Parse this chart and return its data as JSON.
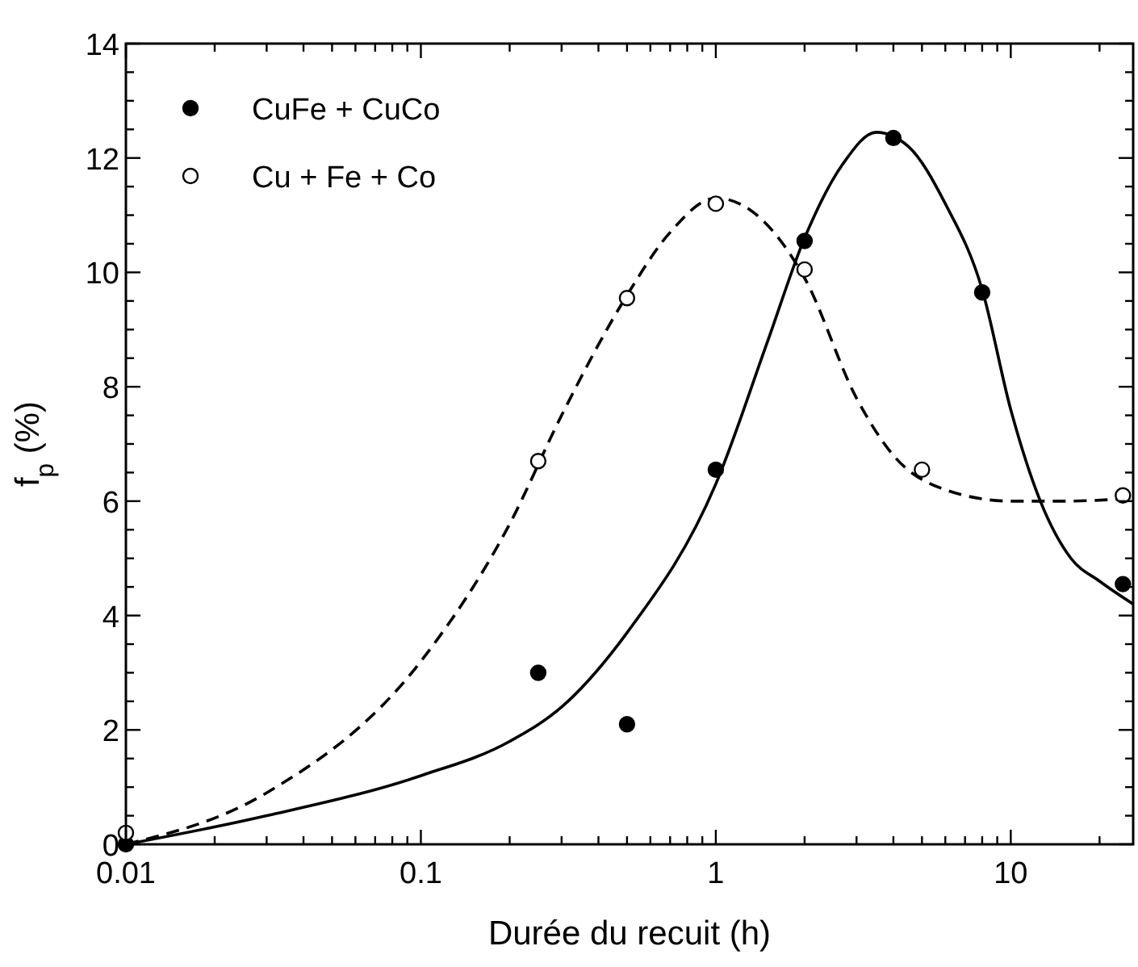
{
  "chart_data": {
    "type": "scatter",
    "xlabel": "Durée du recuit (h)",
    "ylabel": "f$_{p}$ (%)",
    "log": "x",
    "xlim": [
      0.01,
      26
    ],
    "xticks": [
      0.01,
      0.1,
      1,
      10
    ],
    "ylim": [
      0,
      14
    ],
    "yticks": [
      0,
      2,
      4,
      6,
      8,
      10,
      12,
      14
    ],
    "grid": false,
    "legend": "top left",
    "series": [
      {
        "name": "CuFe + CuCo",
        "marker": "circle",
        "color": "#000000",
        "x": [
          0.01,
          0.25,
          0.5,
          1,
          2,
          4,
          8,
          24
        ],
        "values": [
          0,
          3.0,
          2.1,
          6.55,
          10.55,
          12.35,
          9.65,
          4.55
        ]
      },
      {
        "name": "Cu + Fe + Co",
        "marker": "circle",
        "color": "#ffffff",
        "x": [
          0.01,
          0.25,
          0.5,
          1,
          2,
          5,
          24
        ],
        "values": [
          0.2,
          6.7,
          9.55,
          11.2,
          10.05,
          6.55,
          6.1
        ]
      },
      {
        "type": "line",
        "line_style": "solid",
        "color": "#000000",
        "x": [
          0.01,
          0.03,
          0.1,
          0.2,
          0.3,
          0.5,
          1,
          1.5,
          2,
          2.7,
          3.5,
          4.5,
          6,
          8,
          10,
          12.6,
          16,
          20,
          26
        ],
        "values": [
          0,
          0.5,
          1.2,
          1.8,
          2.4,
          3.7,
          6.3,
          8.8,
          10.6,
          11.9,
          12.45,
          12.2,
          11.2,
          9.7,
          7.6,
          6.0,
          5.0,
          4.6,
          4.2
        ]
      },
      {
        "type": "line",
        "line_style": "dashed",
        "color": "#000000",
        "x": [
          0.01,
          0.03,
          0.1,
          0.2,
          0.3,
          0.5,
          0.7,
          1,
          1.3,
          2,
          3,
          4,
          6,
          10,
          15,
          26
        ],
        "values": [
          0,
          0.9,
          3.2,
          5.6,
          7.5,
          9.6,
          10.7,
          11.3,
          11.1,
          9.9,
          7.8,
          6.8,
          6.2,
          6.0,
          6.0,
          6.05
        ]
      }
    ]
  }
}
